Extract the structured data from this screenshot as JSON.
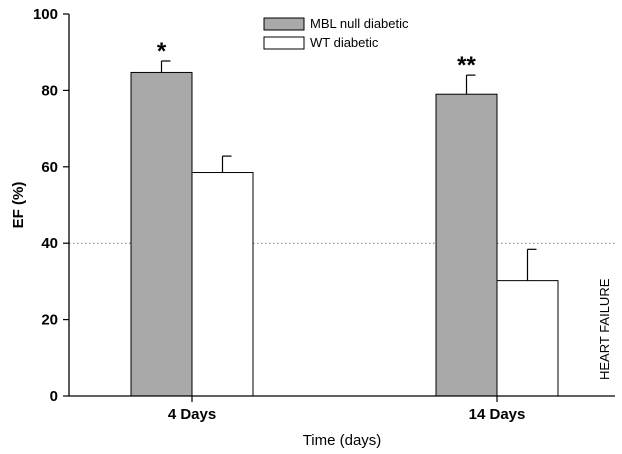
{
  "chart_data": {
    "type": "bar",
    "categories": [
      "4 Days",
      "14 Days"
    ],
    "series": [
      {
        "name": "MBL null diabetic",
        "color": "#a9a9a9",
        "values": [
          84.7,
          79
        ],
        "errors": [
          3,
          5
        ]
      },
      {
        "name": "WT diabetic",
        "color": "#ffffff",
        "values": [
          58.5,
          30.2
        ],
        "errors": [
          4.3,
          8.2
        ]
      }
    ],
    "xlabel": "Time (days)",
    "ylabel": "EF (%)",
    "ylim": [
      0,
      100
    ],
    "yticks": [
      0,
      20,
      40,
      60,
      80,
      100
    ],
    "annotations": [
      "*",
      "**"
    ],
    "reference_line": {
      "value": 40,
      "label": "HEART FAILURE"
    },
    "legend_position": "top-center"
  }
}
